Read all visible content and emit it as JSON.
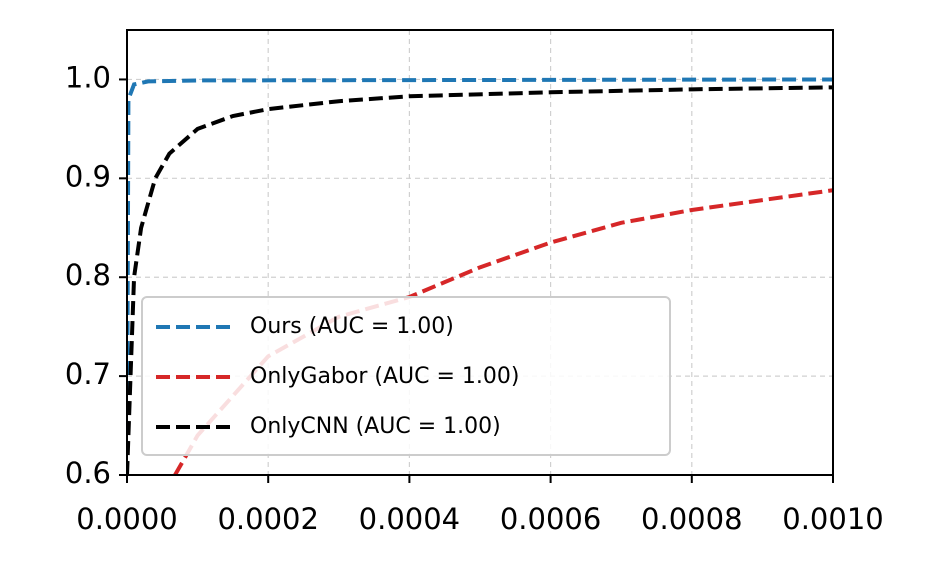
{
  "chart_data": {
    "type": "line",
    "xlim": [
      0,
      0.001
    ],
    "ylim": [
      0.6,
      1.05
    ],
    "xticks": [
      {
        "value": 0,
        "label": "0.0000"
      },
      {
        "value": 0.0002,
        "label": "0.0002"
      },
      {
        "value": 0.0004,
        "label": "0.0004"
      },
      {
        "value": 0.0006,
        "label": "0.0006"
      },
      {
        "value": 0.0008,
        "label": "0.0008"
      },
      {
        "value": 0.001,
        "label": "0.0010"
      }
    ],
    "yticks": [
      0.6,
      0.7,
      0.8,
      0.9,
      {
        "value": 1,
        "label": "1.0"
      }
    ],
    "grid": true,
    "legend": "lower left",
    "series": [
      {
        "name": "Ours (AUC = 1.00)",
        "color": "#1f77b4",
        "x": [
          0,
          2e-06,
          1e-05,
          3e-05,
          0.0001,
          0.001
        ],
        "values": [
          0.6,
          0.98,
          0.995,
          0.998,
          0.999,
          1.0
        ]
      },
      {
        "name": "OnlyGabor (AUC = 1.00)",
        "color": "#d62728",
        "x": [
          6.8e-05,
          0.0001,
          0.0002,
          0.0003,
          0.0004,
          0.0005,
          0.0006,
          0.0007,
          0.0008,
          0.0009,
          0.001
        ],
        "values": [
          0.6,
          0.64,
          0.72,
          0.76,
          0.78,
          0.81,
          0.835,
          0.855,
          0.868,
          0.878,
          0.888
        ]
      },
      {
        "name": "OnlyCNN (AUC = 1.00)",
        "color": "#000000",
        "x": [
          0,
          5e-06,
          1e-05,
          2e-05,
          4e-05,
          6e-05,
          0.0001,
          0.00015,
          0.0002,
          0.0003,
          0.0004,
          0.0006,
          0.0008,
          0.001
        ],
        "values": [
          0.6,
          0.7,
          0.8,
          0.85,
          0.9,
          0.925,
          0.95,
          0.963,
          0.97,
          0.978,
          0.983,
          0.987,
          0.99,
          0.992
        ]
      }
    ]
  }
}
